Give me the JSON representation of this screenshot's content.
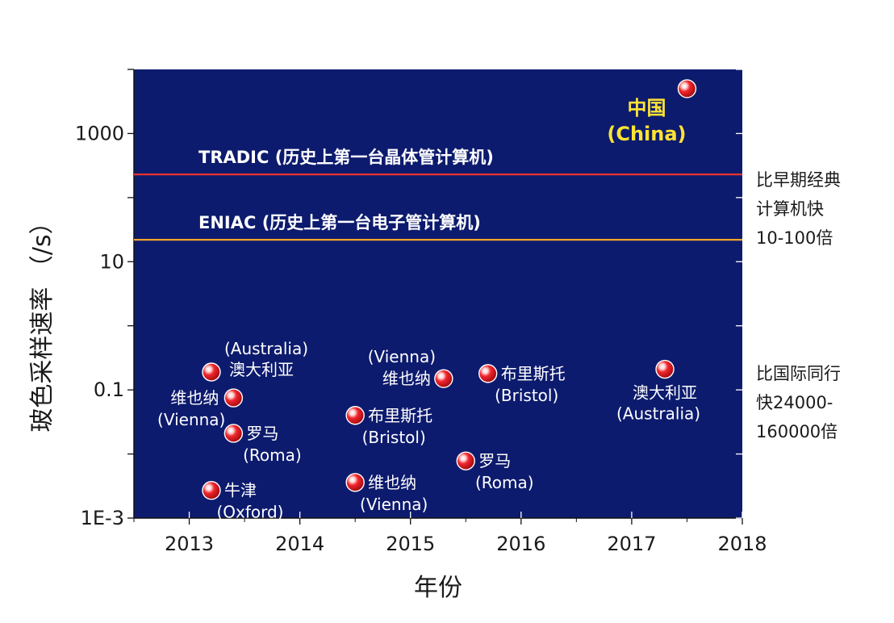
{
  "chart_data": {
    "type": "scatter",
    "xlabel": "年份",
    "ylabel": "玻色采样速率 （/s）",
    "xlim": [
      2012.5,
      2018
    ],
    "ylim": [
      0.001,
      10000
    ],
    "y_scale": "log",
    "x_ticks": [
      {
        "value": 2013,
        "label": "2013"
      },
      {
        "value": 2014,
        "label": "2014"
      },
      {
        "value": 2015,
        "label": "2015"
      },
      {
        "value": 2016,
        "label": "2016"
      },
      {
        "value": 2017,
        "label": "2017"
      },
      {
        "value": 2018,
        "label": "2018"
      }
    ],
    "y_ticks": [
      {
        "value": 1000,
        "label": "1000"
      },
      {
        "value": 10,
        "label": "10"
      },
      {
        "value": 0.1,
        "label": "0.1"
      },
      {
        "value": 0.001,
        "label": "1E-3"
      }
    ],
    "reference_lines": [
      {
        "y": 230,
        "label": "TRADIC (历史上第一台晶体管计算机)",
        "color": "#e8322f"
      },
      {
        "y": 22,
        "label": "ENIAC (历史上第一台电子管计算机)",
        "color": "#f0a42a"
      }
    ],
    "points": [
      {
        "x": 2013.2,
        "y": 0.19,
        "label_cn": "澳大利亚",
        "label_en": "(Australia)",
        "layout": "en-above-cn-right"
      },
      {
        "x": 2013.4,
        "y": 0.075,
        "label_cn": "维也纳",
        "label_en": "(Vienna)",
        "layout": "cn-left-en-below-left"
      },
      {
        "x": 2013.4,
        "y": 0.021,
        "label_cn": "罗马",
        "label_en": "(Roma)",
        "layout": "cn-right-en-below"
      },
      {
        "x": 2013.2,
        "y": 0.0027,
        "label_cn": "牛津",
        "label_en": "(Oxford)",
        "layout": "cn-right-en-below"
      },
      {
        "x": 2014.5,
        "y": 0.04,
        "label_cn": "布里斯托",
        "label_en": "(Bristol)",
        "layout": "cn-right-en-below"
      },
      {
        "x": 2014.5,
        "y": 0.0036,
        "label_cn": "维也纳",
        "label_en": "(Vienna)",
        "layout": "cn-right-en-below"
      },
      {
        "x": 2015.3,
        "y": 0.15,
        "label_cn": "维也纳",
        "label_en": "(Vienna)",
        "layout": "en-above-cn-left"
      },
      {
        "x": 2015.7,
        "y": 0.18,
        "label_cn": "布里斯托",
        "label_en": "(Bristol)",
        "layout": "cn-right-en-below"
      },
      {
        "x": 2015.5,
        "y": 0.0078,
        "label_cn": "罗马",
        "label_en": "(Roma)",
        "layout": "cn-right-en-below"
      },
      {
        "x": 2017.3,
        "y": 0.21,
        "label_cn": "澳大利亚",
        "label_en": "(Australia)",
        "layout": "cn-below-en-below"
      },
      {
        "x": 2017.5,
        "y": 5000,
        "label_cn": "中国",
        "label_en": "(China)",
        "layout": "china",
        "highlight": true
      }
    ],
    "colors": {
      "plot_background": "#0d1b6e",
      "point": "#e8202a",
      "highlight_label": "#ffe433"
    }
  },
  "side_notes": [
    {
      "lines": [
        "比早期经典",
        "计算机快",
        "10-100倍"
      ]
    },
    {
      "lines": [
        "比国际同行",
        "快24000-",
        "160000倍"
      ]
    }
  ]
}
